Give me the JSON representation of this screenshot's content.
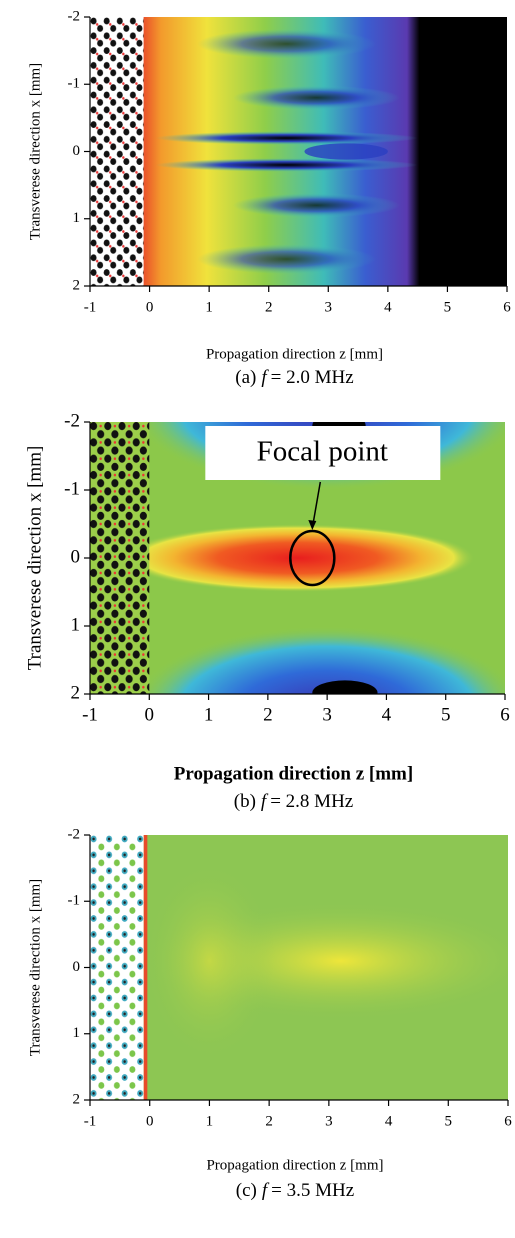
{
  "chart_data": [
    {
      "type": "heatmap",
      "xlabel": "Propagation direction z [mm]",
      "ylabel": "Transverese direction x [mm]",
      "caption": {
        "label": "(a)",
        "variable": "f",
        "value": "= 2.0 MHz"
      },
      "xlim": [
        -1,
        6
      ],
      "ylim": [
        2,
        -2
      ],
      "xticks": [
        -1,
        0,
        1,
        2,
        3,
        4,
        5,
        6
      ],
      "yticks": [
        -2,
        -1,
        0,
        1,
        2
      ]
    },
    {
      "type": "heatmap",
      "xlabel": "Propagation direction z [mm]",
      "ylabel": "Transverese direction x [mm]",
      "caption": {
        "label": "(b)",
        "variable": "f",
        "value": "= 2.8 MHz"
      },
      "annotation": {
        "text": "Focal point",
        "x": 2.75,
        "y": 0
      },
      "xlim": [
        -1,
        6
      ],
      "ylim": [
        2,
        -2
      ],
      "xticks": [
        -1,
        0,
        1,
        2,
        3,
        4,
        5,
        6
      ],
      "yticks": [
        -2,
        -1,
        0,
        1,
        2
      ]
    },
    {
      "type": "heatmap",
      "xlabel": "Propagation direction z [mm]",
      "ylabel": "Transverese direction x [mm]",
      "caption": {
        "label": "(c)",
        "variable": "f",
        "value": "= 3.5 MHz"
      },
      "xlim": [
        -1,
        6
      ],
      "ylim": [
        2,
        -2
      ],
      "xticks": [
        -1,
        0,
        1,
        2,
        3,
        4,
        5,
        6
      ],
      "yticks": [
        -2,
        -1,
        0,
        1,
        2
      ]
    }
  ]
}
